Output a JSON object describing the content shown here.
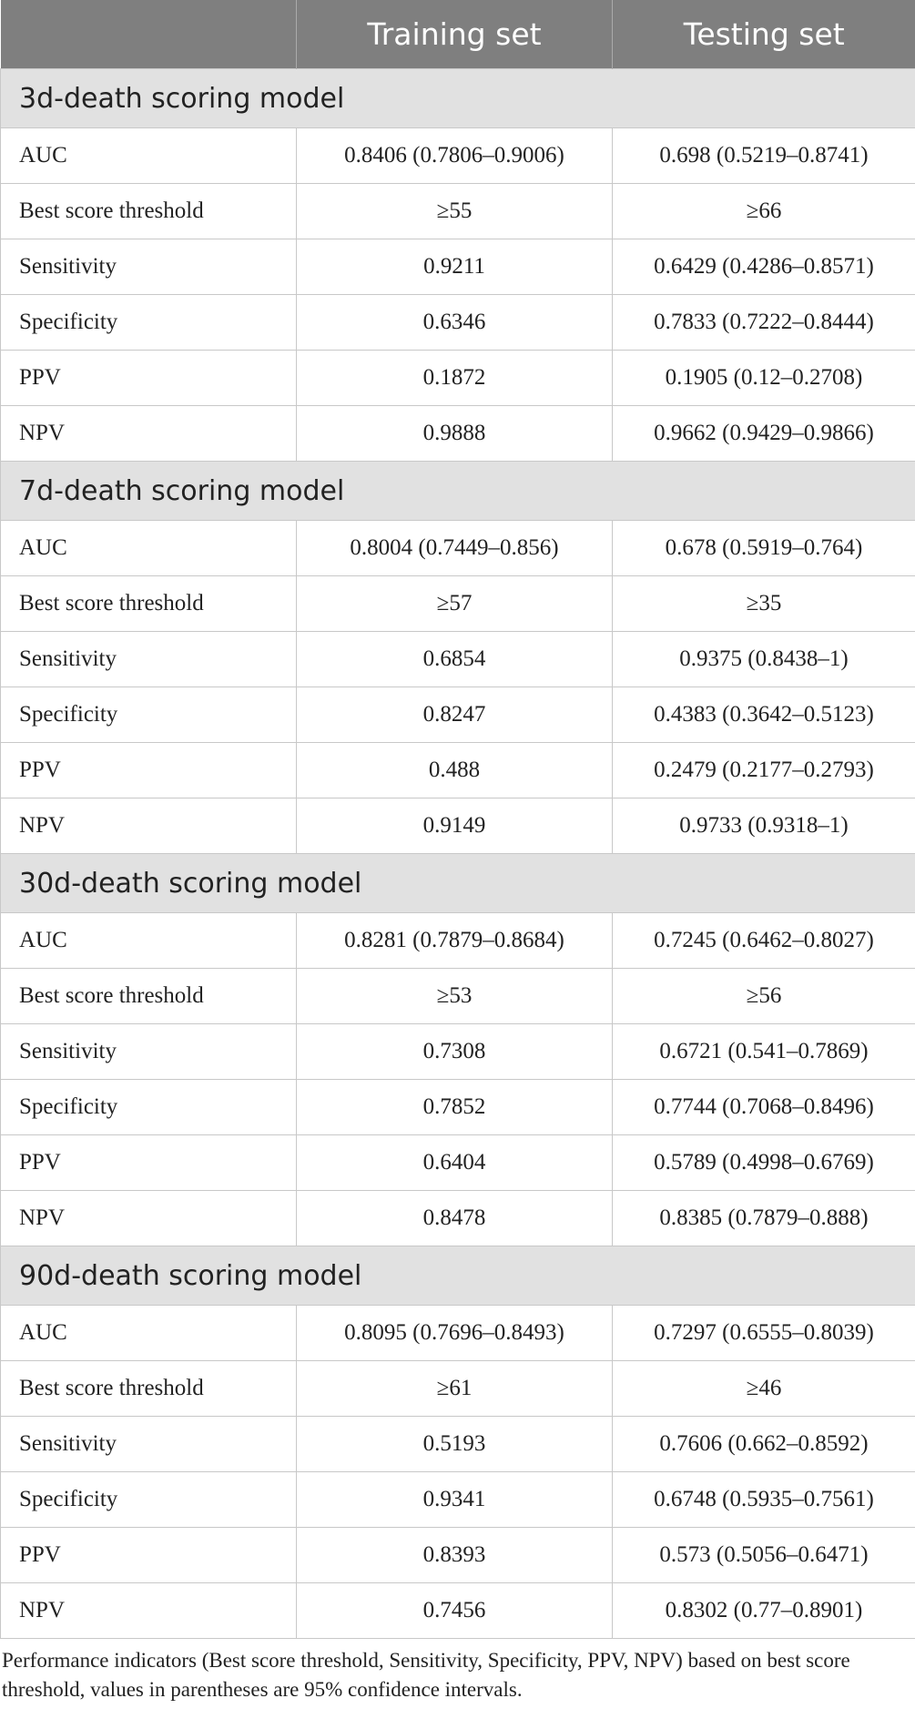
{
  "header": {
    "columns": [
      "Training set",
      "Testing set"
    ]
  },
  "sections": [
    {
      "title": "3d-death scoring model",
      "rows": [
        [
          "AUC",
          "0.8406 (0.7806–0.9006)",
          "0.698 (0.5219–0.8741)"
        ],
        [
          "Best score threshold",
          "≥55",
          "≥66"
        ],
        [
          "Sensitivity",
          "0.9211",
          "0.6429 (0.4286–0.8571)"
        ],
        [
          "Specificity",
          "0.6346",
          "0.7833 (0.7222–0.8444)"
        ],
        [
          "PPV",
          "0.1872",
          "0.1905 (0.12–0.2708)"
        ],
        [
          "NPV",
          "0.9888",
          "0.9662 (0.9429–0.9866)"
        ]
      ]
    },
    {
      "title": "7d-death scoring model",
      "rows": [
        [
          "AUC",
          "0.8004 (0.7449–0.856)",
          "0.678 (0.5919–0.764)"
        ],
        [
          "Best score threshold",
          "≥57",
          "≥35"
        ],
        [
          "Sensitivity",
          "0.6854",
          "0.9375 (0.8438–1)"
        ],
        [
          "Specificity",
          "0.8247",
          "0.4383 (0.3642–0.5123)"
        ],
        [
          "PPV",
          "0.488",
          "0.2479 (0.2177–0.2793)"
        ],
        [
          "NPV",
          "0.9149",
          "0.9733 (0.9318–1)"
        ]
      ]
    },
    {
      "title": "30d-death scoring model",
      "rows": [
        [
          "AUC",
          "0.8281 (0.7879–0.8684)",
          "0.7245 (0.6462–0.8027)"
        ],
        [
          "Best score threshold",
          "≥53",
          "≥56"
        ],
        [
          "Sensitivity",
          "0.7308",
          "0.6721 (0.541–0.7869)"
        ],
        [
          "Specificity",
          "0.7852",
          "0.7744 (0.7068–0.8496)"
        ],
        [
          "PPV",
          "0.6404",
          "0.5789 (0.4998–0.6769)"
        ],
        [
          "NPV",
          "0.8478",
          "0.8385 (0.7879–0.888)"
        ]
      ]
    },
    {
      "title": "90d-death scoring model",
      "rows": [
        [
          "AUC",
          "0.8095 (0.7696–0.8493)",
          "0.7297 (0.6555–0.8039)"
        ],
        [
          "Best score threshold",
          "≥61",
          "≥46"
        ],
        [
          "Sensitivity",
          "0.5193",
          "0.7606 (0.662–0.8592)"
        ],
        [
          "Specificity",
          "0.9341",
          "0.6748 (0.5935–0.7561)"
        ],
        [
          "PPV",
          "0.8393",
          "0.573 (0.5056–0.6471)"
        ],
        [
          "NPV",
          "0.7456",
          "0.8302 (0.77–0.8901)"
        ]
      ]
    }
  ],
  "footnote": "Performance indicators (Best score threshold, Sensitivity, Specificity, PPV, NPV) based on best score threshold, values in parentheses are 95% confidence intervals."
}
